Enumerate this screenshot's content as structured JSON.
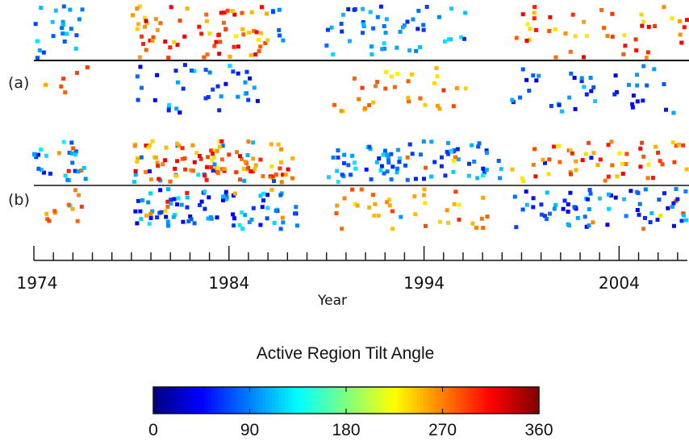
{
  "chart_data": {
    "type": "scatter",
    "xlabel": "Year",
    "xlim": [
      1974,
      2007.5
    ],
    "x_major_ticks": [
      1974,
      1984,
      1994,
      2004
    ],
    "x_minor_tick_step": 1,
    "grid": false,
    "panels": [
      {
        "label": "(a)"
      },
      {
        "label": "(b)"
      }
    ],
    "colorbar": {
      "title": "Active Region Tilt Angle",
      "colormap": "jet",
      "range": [
        0,
        360
      ],
      "ticks": [
        "0",
        "90",
        "180",
        "270",
        "360"
      ],
      "tick_values": [
        0,
        90,
        180,
        270,
        360
      ]
    },
    "clusters": [
      {
        "panel": 0,
        "side": "north",
        "x": [
          1974.0,
          1976.5
        ],
        "n": 22,
        "angle": [
          60,
          130
        ],
        "orange": 0.0
      },
      {
        "panel": 0,
        "side": "south",
        "x": [
          1974.6,
          1978.2
        ],
        "n": 6,
        "angle": [
          250,
          300
        ],
        "orange": 1.0
      },
      {
        "panel": 0,
        "side": "north",
        "x": [
          1979.0,
          1986.0
        ],
        "n": 70,
        "angle": [
          230,
          330
        ],
        "orange": 1.0
      },
      {
        "panel": 0,
        "side": "north",
        "x": [
          1986.2,
          1986.8
        ],
        "n": 6,
        "angle": [
          70,
          110
        ],
        "orange": 0.0
      },
      {
        "panel": 0,
        "side": "south",
        "x": [
          1979.3,
          1985.5
        ],
        "n": 38,
        "angle": [
          30,
          130
        ],
        "orange": 0.0
      },
      {
        "panel": 0,
        "side": "north",
        "x": [
          1989.0,
          1996.5
        ],
        "n": 50,
        "angle": [
          50,
          130
        ],
        "orange": 0.0
      },
      {
        "panel": 0,
        "side": "south",
        "x": [
          1989.2,
          1997.0
        ],
        "n": 32,
        "angle": [
          230,
          300
        ],
        "orange": 1.0
      },
      {
        "panel": 0,
        "side": "north",
        "x": [
          1998.5,
          2007.5
        ],
        "n": 45,
        "angle": [
          230,
          330
        ],
        "orange": 1.0
      },
      {
        "panel": 0,
        "side": "south",
        "x": [
          1998.5,
          2007.0
        ],
        "n": 42,
        "angle": [
          30,
          120
        ],
        "orange": 0.0
      },
      {
        "panel": 1,
        "side": "north",
        "x": [
          1974.0,
          1976.8
        ],
        "n": 28,
        "angle": [
          40,
          140
        ],
        "orange": 0.15
      },
      {
        "panel": 1,
        "side": "south",
        "x": [
          1974.4,
          1976.6
        ],
        "n": 12,
        "angle": [
          250,
          300
        ],
        "orange": 0.8
      },
      {
        "panel": 1,
        "side": "north",
        "x": [
          1979.0,
          1987.5
        ],
        "n": 110,
        "angle": [
          230,
          330
        ],
        "orange": 0.8
      },
      {
        "panel": 1,
        "side": "south",
        "x": [
          1979.2,
          1987.5
        ],
        "n": 90,
        "angle": [
          30,
          130
        ],
        "orange": 0.15
      },
      {
        "panel": 1,
        "side": "north",
        "x": [
          1989.0,
          1998.0
        ],
        "n": 85,
        "angle": [
          50,
          130
        ],
        "orange": 0.1
      },
      {
        "panel": 1,
        "side": "south",
        "x": [
          1989.2,
          1997.5
        ],
        "n": 38,
        "angle": [
          230,
          300
        ],
        "orange": 0.9
      },
      {
        "panel": 1,
        "side": "north",
        "x": [
          1998.5,
          2007.5
        ],
        "n": 55,
        "angle": [
          230,
          320
        ],
        "orange": 0.9
      },
      {
        "panel": 1,
        "side": "south",
        "x": [
          1998.5,
          2007.5
        ],
        "n": 70,
        "angle": [
          30,
          120
        ],
        "orange": 0.1
      }
    ]
  }
}
